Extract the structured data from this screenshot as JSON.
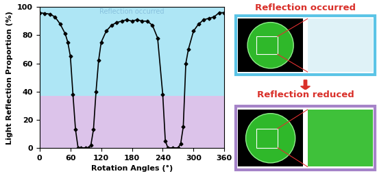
{
  "chart_data": {
    "type": "line",
    "x_label": "Rotation Angles (°)",
    "y_label": "Light Reflection Proportion (%)",
    "annotation": "Reflection occurred",
    "x": [
      0,
      10,
      20,
      30,
      40,
      50,
      55,
      60,
      65,
      70,
      75,
      80,
      90,
      95,
      100,
      105,
      110,
      115,
      120,
      130,
      140,
      150,
      160,
      170,
      180,
      190,
      200,
      210,
      220,
      230,
      240,
      245,
      250,
      260,
      270,
      275,
      280,
      285,
      290,
      300,
      310,
      320,
      330,
      340,
      350,
      360
    ],
    "values": [
      96,
      95.5,
      95,
      93,
      88,
      81,
      75,
      65,
      38,
      13,
      0,
      0,
      0,
      0,
      2,
      13,
      40,
      62,
      75,
      83,
      87,
      89,
      90,
      91,
      90,
      91,
      90,
      90,
      87,
      78,
      38,
      5,
      0,
      0,
      0,
      3,
      15,
      60,
      70,
      83,
      88,
      91,
      92,
      93,
      96,
      96
    ],
    "color": "#000000",
    "marker": "D",
    "line_style": "solid",
    "xlim": [
      0,
      360
    ],
    "xticks": [
      0,
      60,
      120,
      180,
      240,
      300,
      360
    ],
    "ylim": [
      0,
      100
    ],
    "yticks": [
      0,
      20,
      40,
      60,
      80,
      100
    ],
    "grid": false,
    "bands": [
      {
        "from": 37,
        "to": 100,
        "color": "#aee6f5"
      },
      {
        "from": 0,
        "to": 37,
        "color": "#dcc3ea"
      }
    ]
  },
  "panels": [
    {
      "label": "Reflection occurred",
      "border": "#5bc4e6",
      "zoom_color": "#dff2f7"
    },
    {
      "label": "Reflection reduced",
      "border": "#a583c8",
      "zoom_color": "#3fc13a"
    }
  ]
}
